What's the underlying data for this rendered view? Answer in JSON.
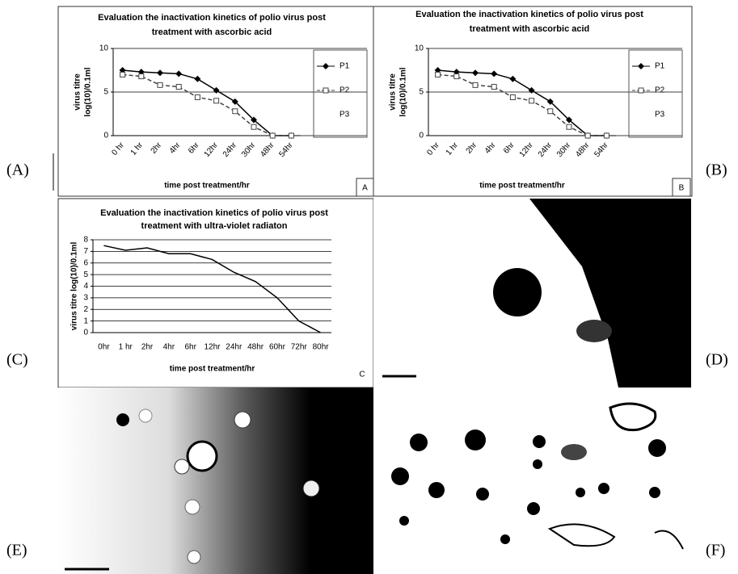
{
  "panel_labels": [
    "(A)",
    "(B)",
    "(C)",
    "(D)",
    "(E)",
    "(F)"
  ],
  "chart_data": [
    {
      "type": "line",
      "title": [
        "Evaluation the inactivation kinetics of polio  virus post",
        "treatment with ascorbic acid"
      ],
      "ylabel": [
        "virus titre",
        "log(10)/0.1ml"
      ],
      "xlabel": "time post treatment/hr",
      "corner_label": "A",
      "categories": [
        "0 hr",
        "1 hr",
        "2hr",
        "4hr",
        "6hr",
        "12hr",
        "24hr",
        "30hr",
        "48hr",
        "54hr"
      ],
      "series": [
        {
          "name": "P1",
          "color": "#000000",
          "marker": "diamond",
          "values": [
            7.5,
            7.3,
            7.2,
            7.1,
            6.5,
            5.2,
            3.9,
            1.8,
            0,
            0
          ]
        },
        {
          "name": "P2",
          "color": "#444444",
          "marker": "square",
          "dashed": true,
          "values": [
            7.0,
            6.8,
            5.8,
            5.6,
            4.4,
            4.0,
            2.8,
            1.0,
            0,
            0
          ]
        },
        {
          "name": "P3",
          "color": "#999999",
          "values": [
            null,
            null,
            null,
            null,
            null,
            null,
            null,
            null,
            null,
            null
          ]
        }
      ],
      "ylim": [
        0,
        10
      ],
      "yticks": [
        0,
        5,
        10
      ],
      "grid": true,
      "legend": "right"
    },
    {
      "type": "line",
      "title": [
        "Evaluation the inactivation kinetics of polio  virus post",
        "treatment with ascorbic acid"
      ],
      "ylabel": [
        "virus titre",
        "log(10)/0.1ml"
      ],
      "xlabel": "time post treatment/hr",
      "corner_label": "B",
      "categories": [
        "0 hr",
        "1 hr",
        "2hr",
        "4hr",
        "6hr",
        "12hr",
        "24hr",
        "30hr",
        "48hr",
        "54hr"
      ],
      "series": [
        {
          "name": "P1",
          "color": "#000000",
          "marker": "diamond",
          "values": [
            7.5,
            7.3,
            7.2,
            7.1,
            6.5,
            5.2,
            3.9,
            1.8,
            0,
            0
          ]
        },
        {
          "name": "P2",
          "color": "#444444",
          "marker": "square",
          "dashed": true,
          "values": [
            7.0,
            6.8,
            5.8,
            5.6,
            4.4,
            4.0,
            2.8,
            1.0,
            0,
            0
          ]
        },
        {
          "name": "P3",
          "color": "#999999",
          "values": [
            null,
            null,
            null,
            null,
            null,
            null,
            null,
            null,
            null,
            null
          ]
        }
      ],
      "ylim": [
        0,
        10
      ],
      "yticks": [
        0,
        5,
        10
      ],
      "grid": true,
      "legend": "right"
    },
    {
      "type": "line",
      "title": [
        "Evaluation the inactivation kinetics of polio virus post",
        "treatment with ultra-violet radiaton"
      ],
      "ylabel": [
        "virus titre log(10)/0.1ml"
      ],
      "xlabel": "time post treatment/hr",
      "corner_label": "C",
      "categories": [
        "0hr",
        "1 hr",
        "2hr",
        "4hr",
        "6hr",
        "12hr",
        "24hr",
        "48hr",
        "60hr",
        "72hr",
        "80hr"
      ],
      "series": [
        {
          "color": "#000000",
          "values": [
            7.5,
            7.1,
            7.3,
            6.8,
            6.8,
            6.3,
            5.2,
            4.4,
            3.0,
            1.0,
            0
          ]
        }
      ],
      "ylim": [
        0,
        8
      ],
      "yticks": [
        0,
        1,
        2,
        3,
        4,
        5,
        6,
        7,
        8
      ],
      "grid": true,
      "legend": "none"
    }
  ]
}
